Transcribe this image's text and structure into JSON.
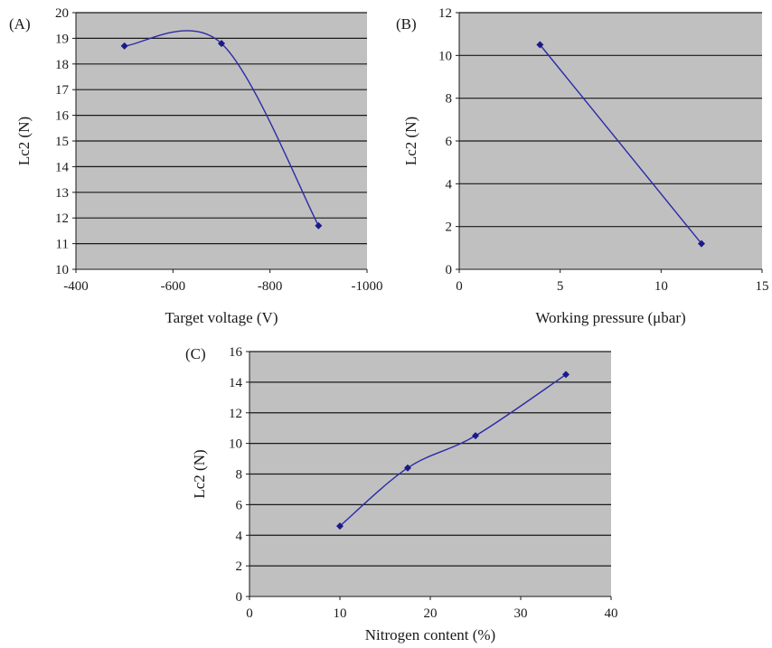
{
  "chart_data": [
    {
      "id": "A",
      "panel_label": "(A)",
      "type": "line",
      "smooth": true,
      "xlabel": "Target voltage (V)",
      "ylabel": "Lc2 (N)",
      "xlim": [
        -400,
        -1000
      ],
      "ylim": [
        10,
        20
      ],
      "xticks": [
        -400,
        -600,
        -800,
        -1000
      ],
      "yticks": [
        10,
        11,
        12,
        13,
        14,
        15,
        16,
        17,
        18,
        19,
        20
      ],
      "grid": "horizontal",
      "series": [
        {
          "x": [
            -500,
            -700,
            -900
          ],
          "y": [
            18.7,
            18.8,
            11.7
          ]
        }
      ]
    },
    {
      "id": "B",
      "panel_label": "(B)",
      "type": "line",
      "smooth": false,
      "xlabel": "Working pressure (μbar)",
      "ylabel": "Lc2 (N)",
      "xlim": [
        0,
        15
      ],
      "ylim": [
        0,
        12
      ],
      "xticks": [
        0,
        5,
        10,
        15
      ],
      "yticks": [
        0,
        2,
        4,
        6,
        8,
        10,
        12
      ],
      "grid": "horizontal",
      "series": [
        {
          "x": [
            4,
            12
          ],
          "y": [
            10.5,
            1.2
          ]
        }
      ]
    },
    {
      "id": "C",
      "panel_label": "(C)",
      "type": "line",
      "smooth": true,
      "xlabel": "Nitrogen content (%)",
      "ylabel": "Lc2 (N)",
      "xlim": [
        0,
        40
      ],
      "ylim": [
        0,
        16
      ],
      "xticks": [
        0,
        10,
        20,
        30,
        40
      ],
      "yticks": [
        0,
        2,
        4,
        6,
        8,
        10,
        12,
        14,
        16
      ],
      "grid": "horizontal",
      "series": [
        {
          "x": [
            10,
            17.5,
            25,
            35
          ],
          "y": [
            4.6,
            8.4,
            10.5,
            14.5
          ]
        }
      ]
    }
  ],
  "colors": {
    "plot_background": "#c0c0c0",
    "series": "#2b2ba8",
    "marker": "#1a1a8a",
    "grid": "#1a1a1a"
  }
}
